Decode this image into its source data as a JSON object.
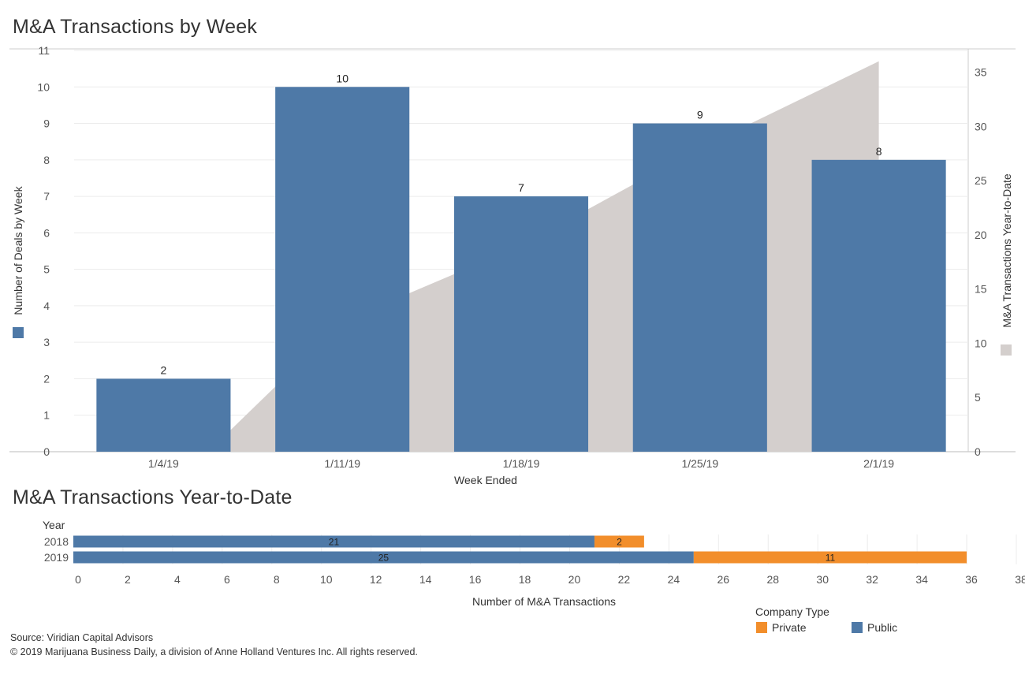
{
  "titles": {
    "weekly": "M&A Transactions by Week",
    "ytd": "M&A Transactions Year-to-Date"
  },
  "colors": {
    "public": "#4e79a7",
    "private": "#f28e2b",
    "ytd_area": "#d4cfcd"
  },
  "legend": {
    "title": "Company Type",
    "items": [
      {
        "label": "Private",
        "color": "#f28e2b"
      },
      {
        "label": "Public",
        "color": "#4e79a7"
      }
    ]
  },
  "footer": {
    "source": "Source: Viridian Capital Advisors",
    "copyright": "© 2019 Marijuana Business Daily, a division of Anne Holland Ventures Inc. All rights reserved."
  },
  "chart_data": [
    {
      "type": "bar",
      "title": "M&A Transactions by Week",
      "xlabel": "Week Ended",
      "ylabel": "Number of Deals by Week",
      "y2label": "M&A Transactions Year-to-Date",
      "categories": [
        "1/4/19",
        "1/11/19",
        "1/18/19",
        "1/25/19",
        "2/1/19"
      ],
      "series": [
        {
          "name": "Number of Deals by Week",
          "type": "bar",
          "values": [
            2,
            10,
            7,
            9,
            8
          ]
        },
        {
          "name": "M&A Transactions Year-to-Date",
          "type": "area",
          "axis": "right",
          "values": [
            2,
            12,
            19,
            28,
            36
          ]
        }
      ],
      "ylim": [
        0,
        11
      ],
      "y2lim": [
        0,
        37
      ],
      "yticks": [
        0,
        1,
        2,
        3,
        4,
        5,
        6,
        7,
        8,
        9,
        10,
        11
      ],
      "y2ticks": [
        0,
        5,
        10,
        15,
        20,
        25,
        30,
        35
      ],
      "grid": true
    },
    {
      "type": "bar",
      "orientation": "horizontal",
      "stacked": true,
      "title": "M&A Transactions Year-to-Date",
      "ylabel": "Year",
      "xlabel": "Number of M&A Transactions",
      "categories": [
        "2018",
        "2019"
      ],
      "series": [
        {
          "name": "Public",
          "values": [
            21,
            25
          ]
        },
        {
          "name": "Private",
          "values": [
            2,
            11
          ]
        }
      ],
      "xlim": [
        0,
        38
      ],
      "xticks": [
        0,
        2,
        4,
        6,
        8,
        10,
        12,
        14,
        16,
        18,
        20,
        22,
        24,
        26,
        28,
        30,
        32,
        34,
        36,
        38
      ],
      "legend": "bottom-right"
    }
  ]
}
